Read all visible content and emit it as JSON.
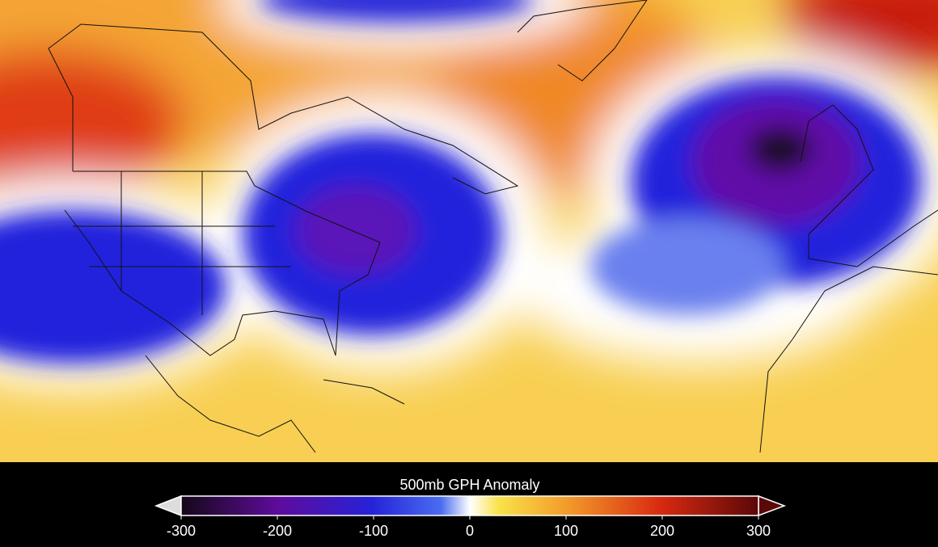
{
  "colorbar": {
    "title": "500mb GPH Anomaly",
    "ticks": [
      -300,
      -200,
      -100,
      0,
      100,
      200,
      300
    ]
  }
}
